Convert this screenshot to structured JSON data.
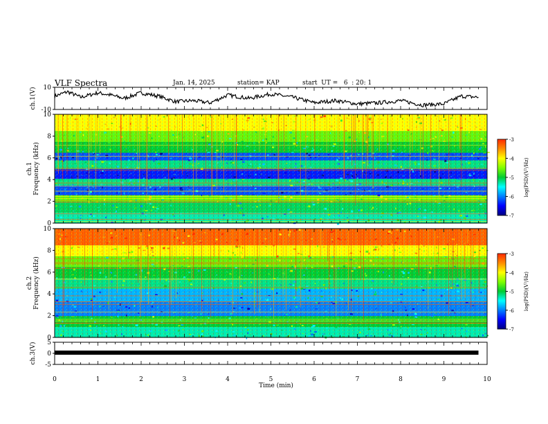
{
  "header": {
    "title": "VLF Spectra",
    "date": "Jan. 14, 2025",
    "station": "station= KAP",
    "start_ut": "start  UT =   6  : 20: 1"
  },
  "colorbar": {
    "label": "log(PSD)(V²/Hz)",
    "ticks": [
      "-3",
      "-4",
      "-5",
      "-6",
      "-7"
    ],
    "colors": [
      "#ff2a00",
      "#ff8c00",
      "#ffff00",
      "#7fff00",
      "#00cc33",
      "#00ffff",
      "#0080ff",
      "#0000ff",
      "#000080"
    ]
  },
  "chart_data": [
    {
      "type": "line",
      "name": "ch1-waveform",
      "ylabel": "ch.1(V)",
      "ylim": [
        -10,
        10
      ],
      "yticks": [
        "10",
        "-10"
      ],
      "xlim": [
        0,
        10
      ],
      "x": [
        0,
        0.3,
        0.6,
        1.0,
        1.3,
        1.6,
        2.0,
        2.4,
        2.8,
        3.2,
        3.6,
        4.0,
        4.5,
        5.0,
        5.5,
        6.0,
        6.5,
        7.0,
        7.5,
        8.0,
        8.5,
        9.0,
        9.4,
        9.8
      ],
      "y": [
        2,
        6,
        1,
        5,
        3,
        0,
        5,
        2,
        -3,
        -2,
        -4,
        3,
        0,
        4,
        1,
        -4,
        -2,
        -5,
        -4,
        -2,
        -6,
        -5,
        2,
        1
      ]
    },
    {
      "type": "heatmap",
      "name": "ch1-spectrogram",
      "ylabel": "ch.1\nFrequency (kHz)",
      "ylim": [
        0,
        10
      ],
      "yticks": [
        "10",
        "8",
        "6",
        "4",
        "2",
        "0"
      ],
      "xlim": [
        0,
        10
      ],
      "freq_bands_khz": [
        0,
        1,
        2,
        2.6,
        3.5,
        4.1,
        5.0,
        5.8,
        6.5,
        7.5,
        8.5,
        10
      ],
      "log_psd": [
        -5.3,
        -5.1,
        -4.6,
        -6.2,
        -5.2,
        -6.4,
        -5.2,
        -6.2,
        -5.0,
        -4.6,
        -4.0
      ]
    },
    {
      "type": "heatmap",
      "name": "ch2-spectrogram",
      "ylabel": "ch.2\nFrequency (kHz)",
      "ylim": [
        0,
        10
      ],
      "yticks": [
        "10",
        "8",
        "6",
        "4",
        "2",
        "0"
      ],
      "xlim": [
        0,
        10
      ],
      "freq_bands_khz": [
        0,
        1,
        2,
        3.3,
        4.5,
        5.5,
        6.5,
        7.5,
        8.5,
        10
      ],
      "log_psd": [
        -5.3,
        -5.0,
        -6.0,
        -5.8,
        -5.2,
        -5.0,
        -4.6,
        -4.0,
        -3.3
      ]
    },
    {
      "type": "line",
      "name": "ch3-waveform",
      "ylabel": "ch.3(V)",
      "ylim": [
        -5,
        5
      ],
      "yticks": [
        "5",
        "0",
        "-5"
      ],
      "xlim": [
        0,
        10
      ],
      "x": [
        0,
        9.8
      ],
      "y": [
        0.3,
        0.3
      ]
    }
  ],
  "xaxis": {
    "label": "Time (min)",
    "ticks": [
      "0",
      "1",
      "2",
      "3",
      "4",
      "5",
      "6",
      "7",
      "8",
      "9",
      "10"
    ]
  }
}
